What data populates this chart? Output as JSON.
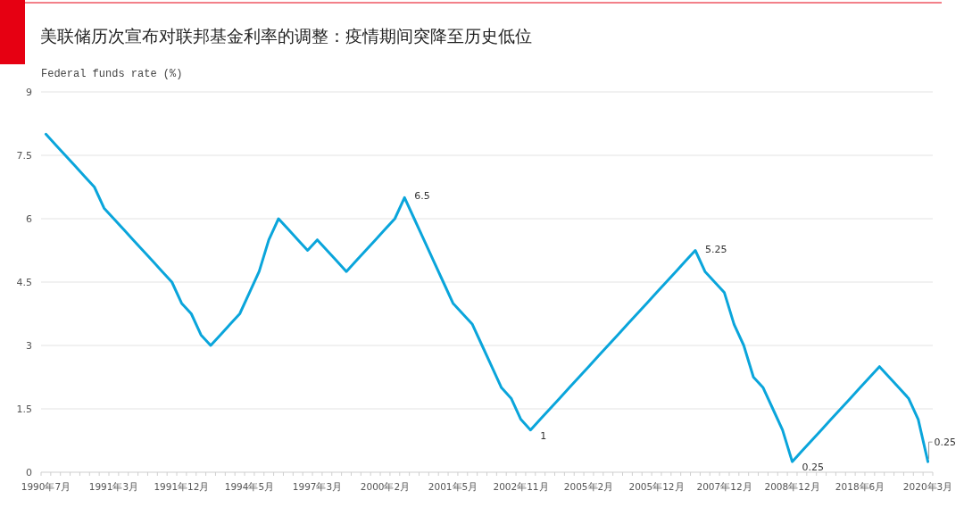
{
  "chart_data": {
    "type": "line",
    "title": "美联储历次宣布对联邦基金利率的调整：疫情期间突降至历史低位",
    "ylabel": "Federal funds rate (%)",
    "categories": [
      "1990年7月",
      null,
      null,
      null,
      null,
      null,
      null,
      "1991年3月",
      null,
      null,
      null,
      null,
      null,
      null,
      "1991年12月",
      null,
      null,
      null,
      null,
      null,
      null,
      "1994年5月",
      null,
      null,
      null,
      null,
      null,
      null,
      "1997年3月",
      null,
      null,
      null,
      null,
      null,
      null,
      "2000年2月",
      null,
      null,
      null,
      null,
      null,
      null,
      "2001年5月",
      null,
      null,
      null,
      null,
      null,
      null,
      "2002年11月",
      null,
      null,
      null,
      null,
      null,
      null,
      "2005年2月",
      null,
      null,
      null,
      null,
      null,
      null,
      "2005年12月",
      null,
      null,
      null,
      null,
      null,
      null,
      "2007年12月",
      null,
      null,
      null,
      null,
      null,
      null,
      "2008年12月",
      null,
      null,
      null,
      null,
      null,
      null,
      "2018年6月",
      null,
      null,
      null,
      null,
      null,
      null,
      "2020年3月"
    ],
    "values": [
      8,
      7.75,
      7.5,
      7.25,
      7,
      6.75,
      6.25,
      6,
      5.75,
      5.5,
      5.25,
      5,
      4.75,
      4.5,
      4,
      3.75,
      3.25,
      3,
      3.25,
      3.5,
      3.75,
      4.25,
      4.75,
      5.5,
      6,
      5.75,
      5.5,
      5.25,
      5.5,
      5.25,
      5,
      4.75,
      5,
      5.25,
      5.5,
      5.75,
      6,
      6.5,
      6,
      5.5,
      5,
      4.5,
      4,
      3.75,
      3.5,
      3,
      2.5,
      2,
      1.75,
      1.25,
      1,
      1.25,
      1.5,
      1.75,
      2,
      2.25,
      2.5,
      2.75,
      3,
      3.25,
      3.5,
      3.75,
      4,
      4.25,
      4.5,
      4.75,
      5,
      5.25,
      4.75,
      4.5,
      4.25,
      3.5,
      3,
      2.25,
      2,
      1.5,
      1,
      0.25,
      0.5,
      0.75,
      1,
      1.25,
      1.5,
      1.75,
      2,
      2.25,
      2.5,
      2.25,
      2,
      1.75,
      1.25,
      0.25
    ],
    "value_labels": [
      null,
      null,
      null,
      null,
      null,
      null,
      null,
      null,
      null,
      null,
      null,
      null,
      null,
      null,
      null,
      null,
      null,
      null,
      null,
      null,
      null,
      null,
      null,
      null,
      null,
      null,
      null,
      null,
      null,
      null,
      null,
      null,
      null,
      null,
      null,
      null,
      null,
      "6.5",
      null,
      null,
      null,
      null,
      null,
      null,
      null,
      null,
      null,
      null,
      null,
      null,
      "1",
      null,
      null,
      null,
      null,
      null,
      null,
      null,
      null,
      null,
      null,
      null,
      null,
      null,
      null,
      null,
      null,
      "5.25",
      null,
      null,
      null,
      null,
      null,
      null,
      null,
      null,
      null,
      "0.25",
      null,
      null,
      null,
      null,
      null,
      null,
      null,
      null,
      null,
      null,
      null,
      null,
      null,
      "0.25"
    ],
    "color": "#0aa5db",
    "ylim": [
      0,
      9
    ],
    "yticks": [
      0,
      1.5,
      3,
      4.5,
      6,
      7.5,
      9
    ],
    "grid": "y",
    "marker": "none",
    "line_style": "solid"
  }
}
